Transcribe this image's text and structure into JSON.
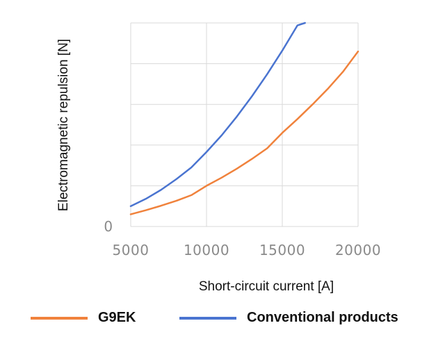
{
  "chart_data": {
    "type": "line",
    "title": "",
    "xlabel": "Short-circuit current [A]",
    "ylabel": "Electromagnetic repulsion [N]",
    "x_ticks": [
      "5000",
      "10000",
      "15000",
      "20000"
    ],
    "y_ticks": [
      "0"
    ],
    "xlim": [
      5000,
      20000
    ],
    "ylim": [
      0,
      5
    ],
    "grid": true,
    "legend_position": "bottom",
    "series": [
      {
        "name": "G9EK",
        "color": "#F0823C",
        "x": [
          5000,
          6000,
          7000,
          8000,
          9000,
          10000,
          11000,
          12000,
          13000,
          14000,
          15000,
          16000,
          17000,
          18000,
          19000,
          20000
        ],
        "y": [
          0.3,
          0.4,
          0.51,
          0.63,
          0.77,
          1.0,
          1.2,
          1.42,
          1.66,
          1.92,
          2.3,
          2.64,
          3.0,
          3.38,
          3.8,
          4.3
        ]
      },
      {
        "name": "Conventional products",
        "color": "#4A74D0",
        "x": [
          5000,
          6000,
          7000,
          8000,
          9000,
          10000,
          11000,
          12000,
          13000,
          14000,
          15000,
          16000,
          16500
        ],
        "y": [
          0.5,
          0.68,
          0.9,
          1.16,
          1.45,
          1.83,
          2.24,
          2.7,
          3.2,
          3.74,
          4.32,
          4.94,
          5.0
        ]
      }
    ]
  }
}
